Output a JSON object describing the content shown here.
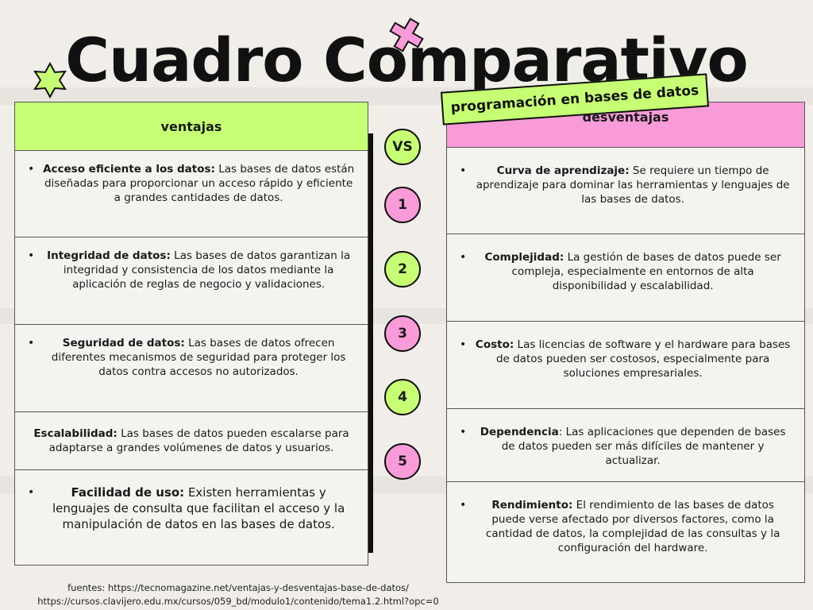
{
  "title": "Cuadro Comparativo",
  "subtitle": "programación en bases de datos",
  "colors": {
    "green": "#c6ff73",
    "pink": "#f99ad9",
    "background": "#f1eeea"
  },
  "vs_label": "VS",
  "numbers": [
    "1",
    "2",
    "3",
    "4",
    "5"
  ],
  "ventajas": {
    "header": "ventajas",
    "items": [
      {
        "bullet": "•",
        "term": "Acceso eficiente a los datos:",
        "text": " Las bases de datos están diseñadas para proporcionar un acceso rápido y eficiente a grandes cantidades de datos."
      },
      {
        "bullet": "•",
        "term": "Integridad de datos:",
        "text": " Las bases de datos garantizan la integridad y consistencia de los datos mediante la aplicación de reglas de negocio y validaciones."
      },
      {
        "bullet": "•",
        "term": "Seguridad de datos:",
        "text": " Las bases de datos ofrecen diferentes mecanismos de seguridad para proteger los datos contra accesos no autorizados."
      },
      {
        "bullet": "",
        "term": "Escalabilidad:",
        "text": " Las bases de datos pueden escalarse para adaptarse a grandes volúmenes de datos y usuarios."
      },
      {
        "bullet": "•",
        "term": "Facilidad de uso:",
        "text": " Existen herramientas y lenguajes de consulta que facilitan el acceso y la manipulación de datos en las bases de datos."
      }
    ]
  },
  "desventajas": {
    "header": "desventajas",
    "items": [
      {
        "bullet": "•",
        "term": "Curva de aprendizaje:",
        "text": " Se requiere un tiempo de aprendizaje para dominar las herramientas y lenguajes de las bases de datos."
      },
      {
        "bullet": "•",
        "term": "Complejidad:",
        "text": " La gestión de bases de datos puede ser compleja, especialmente en entornos de alta disponibilidad y escalabilidad."
      },
      {
        "bullet": "•",
        "term": "Costo:",
        "text": " Las licencias de software y el hardware para bases de datos pueden ser costosos, especialmente para soluciones empresariales."
      },
      {
        "bullet": "•",
        "term": "Dependencia",
        "text": ": Las aplicaciones que dependen de bases de datos pueden ser más difíciles de mantener y actualizar."
      },
      {
        "bullet": "•",
        "term": "Rendimiento:",
        "text": " El rendimiento de las bases de datos puede verse afectado por diversos factores, como la cantidad de datos, la complejidad de las consultas y la configuración del hardware."
      }
    ]
  },
  "sources": {
    "line1": "fuentes:  https://tecnomagazine.net/ventajas-y-desventajas-base-de-datos/",
    "line2": "https://cursos.clavijero.edu.mx/cursos/059_bd/modulo1/contenido/tema1.2.html?opc=0"
  }
}
